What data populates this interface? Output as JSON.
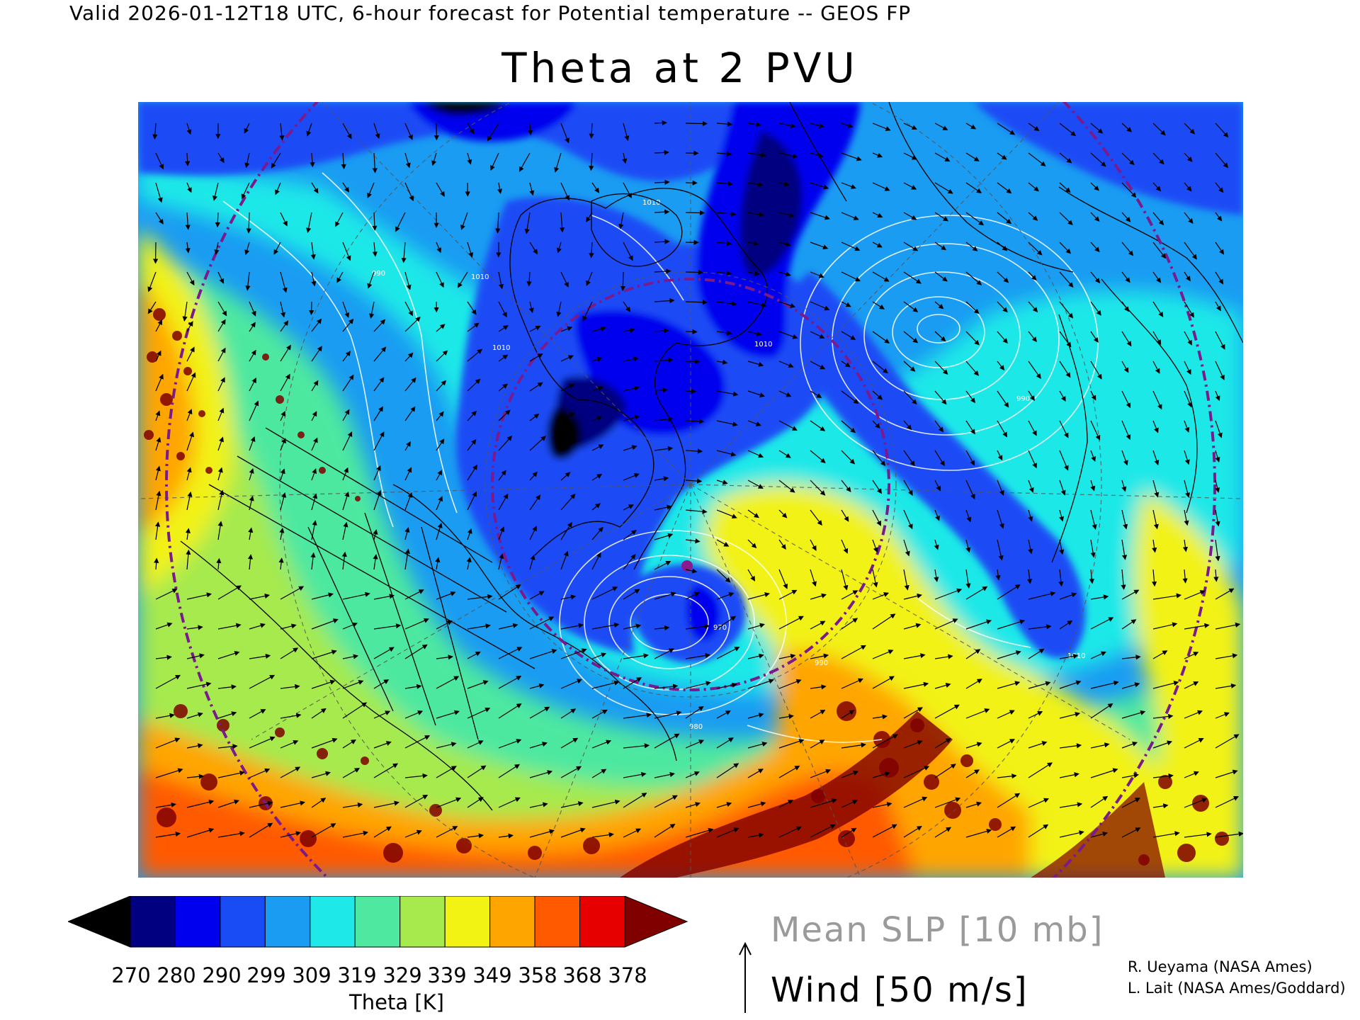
{
  "header": "Valid 2026-01-12T18 UTC, 6-hour forecast for Potential temperature -- GEOS FP",
  "title": "Theta at 2 PVU",
  "colorbar": {
    "title": "Theta [K]",
    "ticks": [
      "270",
      "280",
      "290",
      "299",
      "309",
      "319",
      "329",
      "339",
      "349",
      "358",
      "368",
      "378"
    ],
    "under_color": "#000000",
    "over_color": "#800000",
    "colors": [
      "#000080",
      "#0000ee",
      "#1a4cf5",
      "#1a9cf2",
      "#1fe8e8",
      "#4ee8a0",
      "#a6ea4e",
      "#f2f213",
      "#ffa500",
      "#ff5a00",
      "#e60000"
    ]
  },
  "legend": {
    "slp": "Mean SLP [10 mb]",
    "wind": "Wind [50 m/s]"
  },
  "credits": [
    "R. Ueyama (NASA Ames)",
    "L. Lait (NASA Ames/Goddard)"
  ],
  "map_labels": [
    "1010",
    "1010",
    "1010",
    "1010",
    "1010",
    "990",
    "990",
    "970",
    "990",
    "980"
  ]
}
